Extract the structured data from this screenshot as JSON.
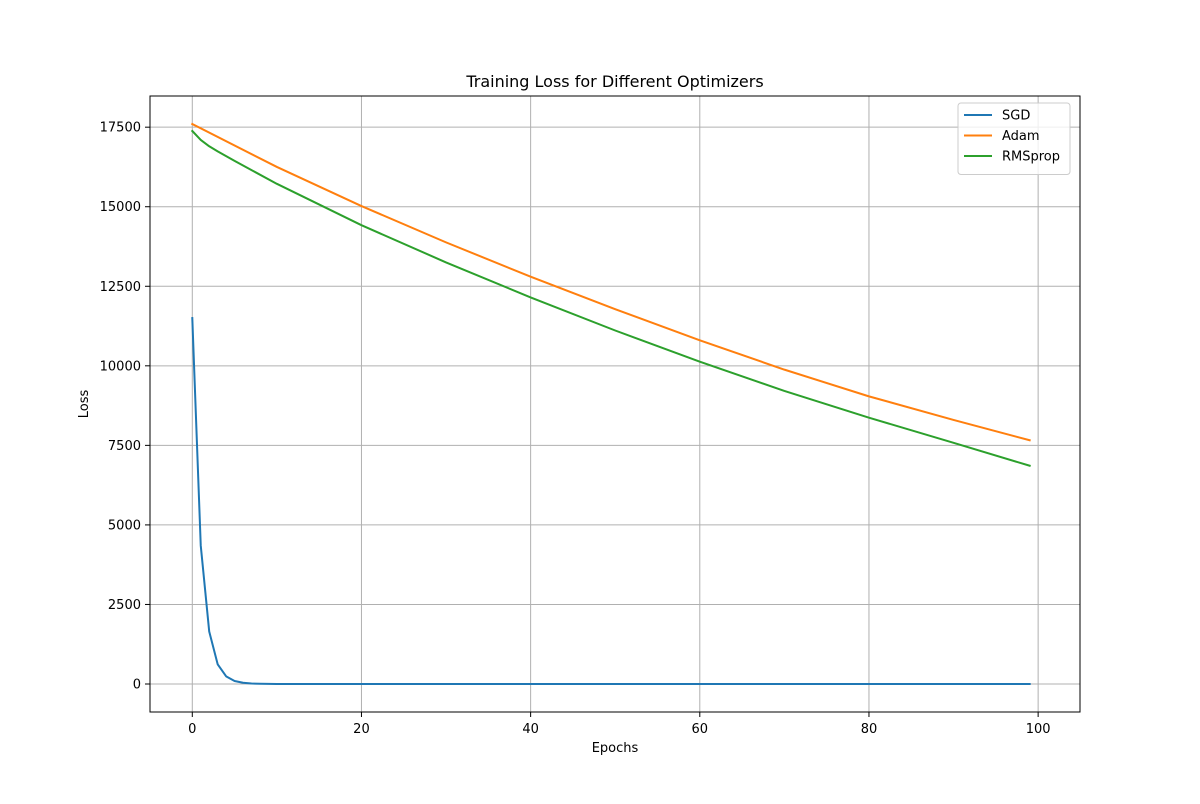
{
  "chart_data": {
    "type": "line",
    "title": "Training Loss for Different Optimizers",
    "xlabel": "Epochs",
    "ylabel": "Loss",
    "xlim": [
      -5,
      104.95
    ],
    "ylim": [
      -880,
      18480
    ],
    "xticks": [
      0,
      20,
      40,
      60,
      80,
      100
    ],
    "yticks": [
      0,
      2500,
      5000,
      7500,
      10000,
      12500,
      15000,
      17500
    ],
    "grid": true,
    "legend_position": "top-right",
    "x_range": [
      0,
      99
    ],
    "series": [
      {
        "name": "SGD",
        "color": "#1f77b4",
        "points": [
          [
            0,
            11500
          ],
          [
            1,
            4350
          ],
          [
            2,
            1650
          ],
          [
            3,
            620
          ],
          [
            4,
            240
          ],
          [
            5,
            95
          ],
          [
            6,
            38
          ],
          [
            7,
            16
          ],
          [
            8,
            7
          ],
          [
            9,
            3
          ],
          [
            10,
            1.5
          ],
          [
            12,
            0.3
          ],
          [
            15,
            0
          ],
          [
            20,
            0
          ],
          [
            40,
            0
          ],
          [
            60,
            0
          ],
          [
            80,
            0
          ],
          [
            99,
            0
          ]
        ]
      },
      {
        "name": "Adam",
        "color": "#ff7f0e",
        "points": [
          [
            0,
            17600
          ],
          [
            10,
            16250
          ],
          [
            20,
            15020
          ],
          [
            30,
            13880
          ],
          [
            40,
            12800
          ],
          [
            50,
            11780
          ],
          [
            60,
            10800
          ],
          [
            70,
            9880
          ],
          [
            80,
            9040
          ],
          [
            90,
            8300
          ],
          [
            99,
            7660
          ]
        ]
      },
      {
        "name": "RMSprop",
        "color": "#2ca02c",
        "points": [
          [
            0,
            17380
          ],
          [
            1,
            17100
          ],
          [
            2,
            16900
          ],
          [
            3,
            16740
          ],
          [
            5,
            16440
          ],
          [
            10,
            15720
          ],
          [
            20,
            14420
          ],
          [
            30,
            13250
          ],
          [
            40,
            12150
          ],
          [
            50,
            11110
          ],
          [
            60,
            10130
          ],
          [
            70,
            9210
          ],
          [
            80,
            8370
          ],
          [
            90,
            7580
          ],
          [
            99,
            6860
          ]
        ]
      }
    ]
  }
}
